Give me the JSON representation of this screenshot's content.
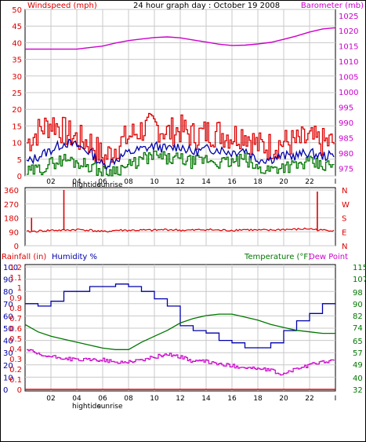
{
  "title": "24 hour graph day : October 19 2008",
  "colors": {
    "wind": "#dd0000",
    "wind_avg": "#0000aa",
    "wind_low": "#007700",
    "barometer": "#cc00cc",
    "direction": "#dd0000",
    "rain": "#dd0000",
    "humidity": "#0000aa",
    "temperature": "#007700",
    "dewpoint": "#cc00cc",
    "grid": "#c8c8c8",
    "panel_bg": "#ffffff"
  },
  "panels": {
    "wind": {
      "left_label": "Windspeed (mph)",
      "right_label": "Barometer (mb)"
    },
    "direction": {
      "compass": [
        "N",
        "W",
        "S",
        "E",
        "N"
      ]
    },
    "bottom": {
      "rain_label": "Rainfall (in)",
      "humidity_label": "Humidity %",
      "temp_label": "Temperature (°F)",
      "dew_label": "Dew Point"
    }
  },
  "x_ticks": [
    "02",
    "04",
    "06",
    "08",
    "10",
    "12",
    "14",
    "16",
    "18",
    "20",
    "22",
    "I"
  ],
  "markers": {
    "hightide": "hightide",
    "sunrise": "sunrise"
  },
  "chart_data": [
    {
      "type": "line",
      "title": "24 hour graph day : October 19 2008",
      "xlabel": "",
      "ylabel": "Windspeed (mph)",
      "ylim": [
        0,
        50
      ],
      "yticks": [
        0,
        5,
        10,
        15,
        20,
        25,
        30,
        35,
        40,
        45,
        50
      ],
      "y2label": "Barometer (mb)",
      "y2lim": [
        972.5,
        1027
      ],
      "y2ticks": [
        975,
        980,
        985,
        990,
        995,
        1000,
        1005,
        1010,
        1015,
        1020,
        1025
      ],
      "x_hours": [
        0,
        1,
        2,
        3,
        4,
        5,
        6,
        7,
        8,
        9,
        10,
        11,
        12,
        13,
        14,
        15,
        16,
        17,
        18,
        19,
        20,
        21,
        22,
        23,
        24
      ],
      "series": [
        {
          "name": "wind_gust",
          "values": [
            10,
            14,
            16,
            13,
            11,
            10,
            5,
            9,
            12,
            14,
            15,
            13,
            14,
            12,
            13,
            13,
            12,
            13,
            9,
            9,
            10,
            10,
            11,
            10,
            10
          ]
        },
        {
          "name": "wind_avg",
          "values": [
            4,
            6,
            8,
            10,
            9,
            7,
            3,
            5,
            7,
            8,
            9,
            8,
            9,
            7,
            8,
            8,
            7,
            8,
            5,
            5,
            6,
            6,
            7,
            6,
            6
          ]
        },
        {
          "name": "wind_low",
          "values": [
            1,
            2,
            4,
            5,
            4,
            3,
            1,
            2,
            3,
            5,
            6,
            5,
            5,
            4,
            5,
            4,
            4,
            5,
            2,
            2,
            3,
            3,
            4,
            3,
            3
          ]
        },
        {
          "name": "barometer",
          "values": [
            1014,
            1014,
            1014,
            1014,
            1014,
            1014.5,
            1015,
            1016,
            1016.8,
            1017.3,
            1017.8,
            1018,
            1017.7,
            1017,
            1016.3,
            1015.6,
            1015.2,
            1015.3,
            1015.7,
            1016.2,
            1017.2,
            1018.3,
            1019.6,
            1020.6,
            1021
          ]
        }
      ]
    },
    {
      "type": "line",
      "ylabel": "",
      "ylim": [
        0,
        360
      ],
      "yticks": [
        0,
        90,
        180,
        270,
        360
      ],
      "series": [
        {
          "name": "wind_direction",
          "values": [
            90,
            95,
            100,
            100,
            105,
            100,
            90,
            100,
            100,
            100,
            100,
            105,
            100,
            100,
            105,
            100,
            100,
            105,
            100,
            100,
            105,
            105,
            110,
            100,
            100
          ]
        }
      ]
    },
    {
      "type": "line",
      "ylabel": "Rainfall (in)",
      "ylim": [
        0,
        1.2
      ],
      "yticks": [
        0,
        0.1,
        0.2,
        0.3,
        0.4,
        0.5,
        0.6,
        0.7,
        0.8,
        0.9,
        1,
        1.1,
        1.2
      ],
      "humidity_ylim": [
        0,
        100
      ],
      "humidity_yticks": [
        0,
        10,
        20,
        30,
        40,
        50,
        60,
        70,
        80,
        90,
        100
      ],
      "y2label": "Temperature (°F)",
      "y2lim": [
        32,
        115
      ],
      "y2ticks": [
        32,
        40,
        49,
        57,
        65,
        74,
        82,
        90,
        98,
        107,
        115
      ],
      "series": [
        {
          "name": "rainfall",
          "values": [
            0,
            0,
            0,
            0,
            0,
            0,
            0,
            0,
            0,
            0,
            0,
            0,
            0,
            0,
            0,
            0,
            0,
            0,
            0,
            0,
            0,
            0,
            0,
            0,
            0
          ]
        },
        {
          "name": "humidity",
          "values": [
            70,
            68,
            72,
            80,
            80,
            84,
            84,
            86,
            84,
            80,
            74,
            68,
            52,
            48,
            46,
            40,
            38,
            34,
            34,
            38,
            48,
            56,
            62,
            70,
            70
          ]
        },
        {
          "name": "temperature",
          "values": [
            76,
            71,
            68,
            66,
            64,
            62,
            60,
            59,
            59,
            64,
            68,
            72,
            77,
            80,
            82,
            83,
            83,
            81,
            79,
            76,
            74,
            72,
            71,
            70,
            70
          ]
        },
        {
          "name": "dewpoint",
          "values": [
            59,
            55,
            54,
            53,
            52,
            52,
            52,
            50,
            51,
            52,
            54,
            56,
            54,
            51,
            51,
            49,
            48,
            47,
            46,
            45,
            42,
            46,
            48,
            51,
            51
          ]
        }
      ]
    }
  ]
}
